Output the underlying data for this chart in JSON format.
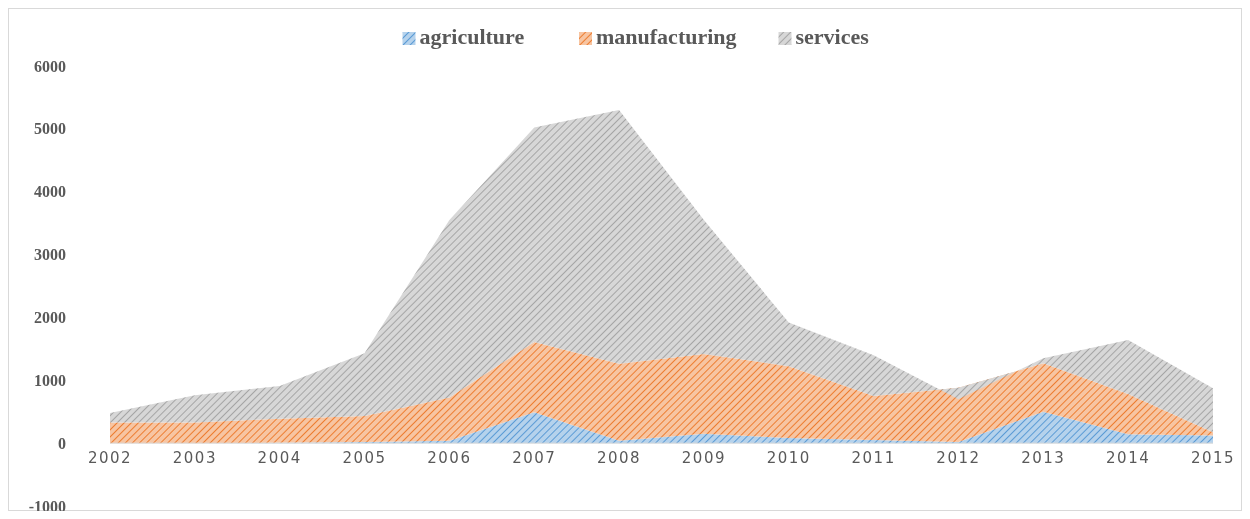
{
  "chart_data": {
    "type": "area",
    "stacked": true,
    "categories": [
      "2002",
      "2003",
      "2004",
      "2005",
      "2006",
      "2007",
      "2008",
      "2009",
      "2010",
      "2011",
      "2012",
      "2013",
      "2014",
      "2015"
    ],
    "series": [
      {
        "name": "agriculture",
        "color": "#5b9bd5",
        "values": [
          0,
          0,
          5,
          20,
          40,
          490,
          40,
          150,
          80,
          50,
          20,
          500,
          140,
          120
        ]
      },
      {
        "name": "manufacturing",
        "color": "#ed7d31",
        "values": [
          330,
          330,
          385,
          410,
          685,
          1120,
          1225,
          1270,
          1145,
          700,
          860,
          770,
          640,
          55
        ]
      },
      {
        "name": "services",
        "color": "#a5a5a5",
        "values": [
          150,
          430,
          520,
          1000,
          2825,
          3410,
          4035,
          2130,
          695,
          650,
          -180,
          80,
          860,
          700
        ]
      }
    ],
    "ylim": [
      -1000,
      6000
    ],
    "yticks": [
      -1000,
      0,
      1000,
      2000,
      3000,
      4000,
      5000,
      6000
    ],
    "legend": "top",
    "grid": false
  }
}
